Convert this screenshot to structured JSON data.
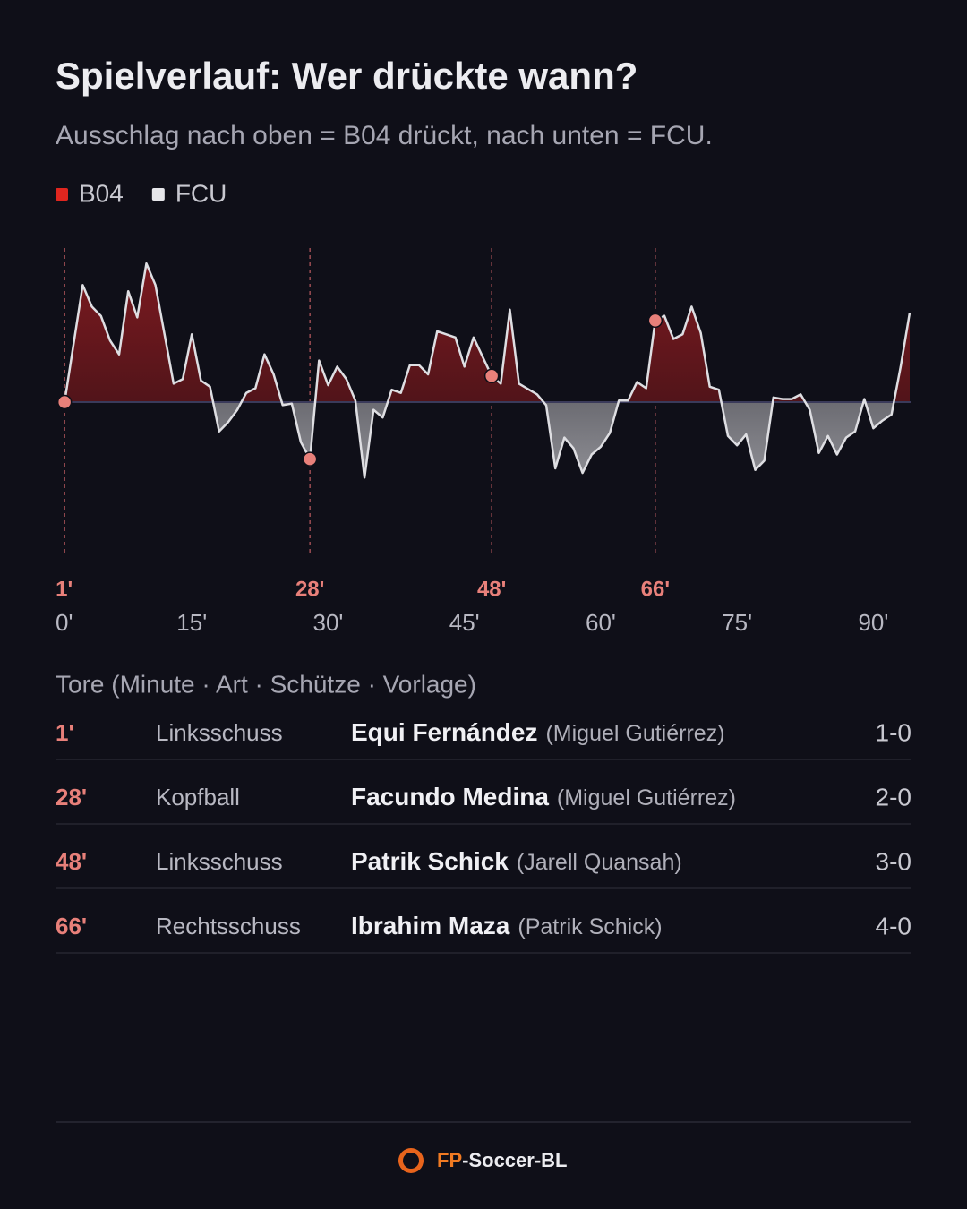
{
  "chart_data": {
    "type": "line",
    "title": "Spielverlauf: Wer drückte wann?",
    "subtitle": "Ausschlag nach oben = B04 drückt, nach unten = FCU.",
    "legend": [
      {
        "name": "B04",
        "color": "#e0261f"
      },
      {
        "name": "FCU",
        "color": "#e6e6ea"
      }
    ],
    "x": [
      1,
      3,
      4,
      5,
      6,
      7,
      8,
      9,
      10,
      11,
      13,
      14,
      15,
      16,
      17,
      18,
      19,
      20,
      21,
      22,
      23,
      24,
      25,
      26,
      27,
      28,
      29,
      30,
      31,
      32,
      33,
      34,
      35,
      36,
      37,
      38,
      39,
      40,
      41,
      42,
      43,
      44,
      45,
      46,
      48,
      49,
      50,
      51,
      53,
      54,
      55,
      56,
      57,
      58,
      59,
      60,
      61,
      62,
      63,
      64,
      65,
      66,
      67,
      68,
      69,
      70,
      71,
      72,
      73,
      74,
      75,
      76,
      77,
      78,
      79,
      80,
      81,
      82,
      83,
      84,
      85,
      86,
      87,
      88,
      89,
      90,
      91,
      92,
      93,
      94
    ],
    "values": [
      0,
      0.76,
      0.62,
      0.56,
      0.4,
      0.31,
      0.72,
      0.55,
      0.9,
      0.76,
      0.12,
      0.15,
      0.44,
      0.14,
      0.1,
      -0.19,
      -0.13,
      -0.05,
      0.06,
      0.09,
      0.31,
      0.18,
      -0.02,
      -0.01,
      -0.26,
      -0.37,
      0.27,
      0.11,
      0.23,
      0.15,
      0.01,
      -0.49,
      -0.05,
      -0.1,
      0.08,
      0.06,
      0.24,
      0.24,
      0.18,
      0.46,
      0.44,
      0.42,
      0.23,
      0.42,
      0.17,
      0.12,
      0.6,
      0.12,
      0.05,
      -0.02,
      -0.43,
      -0.23,
      -0.3,
      -0.46,
      -0.34,
      -0.29,
      -0.2,
      0.01,
      0.01,
      0.13,
      0.09,
      0.53,
      0.56,
      0.41,
      0.44,
      0.62,
      0.45,
      0.1,
      0.08,
      -0.22,
      -0.28,
      -0.21,
      -0.44,
      -0.38,
      0.03,
      0.02,
      0.02,
      0.05,
      -0.05,
      -0.33,
      -0.22,
      -0.34,
      -0.23,
      -0.19,
      0.02,
      -0.17,
      -0.12,
      -0.08,
      0.23,
      0.58
    ],
    "xlim": [
      0,
      94
    ],
    "ylim": [
      -1,
      1
    ],
    "xticks": [
      {
        "value": 0,
        "label": "0'"
      },
      {
        "value": 15,
        "label": "15'"
      },
      {
        "value": 30,
        "label": "30'"
      },
      {
        "value": 45,
        "label": "45'"
      },
      {
        "value": 60,
        "label": "60'"
      },
      {
        "value": 75,
        "label": "75'"
      },
      {
        "value": 90,
        "label": "90'"
      }
    ],
    "goal_minutes": [
      1,
      28,
      48,
      66
    ],
    "goal_labels": [
      "1'",
      "28'",
      "48'",
      "66'"
    ],
    "goal_color": "#e8807a"
  },
  "goals": {
    "heading": "Tore (Minute · Art · Schütze · Vorlage)",
    "rows": [
      {
        "minute": "1'",
        "type": "Linksschuss",
        "scorer": "Equi Fernández",
        "assist": "(Miguel Gutiérrez)",
        "score": "1-0"
      },
      {
        "minute": "28'",
        "type": "Kopfball",
        "scorer": "Facundo Medina",
        "assist": "(Miguel Gutiérrez)",
        "score": "2-0"
      },
      {
        "minute": "48'",
        "type": "Linksschuss",
        "scorer": "Patrik Schick",
        "assist": "(Jarell Quansah)",
        "score": "3-0"
      },
      {
        "minute": "66'",
        "type": "Rechtsschuss",
        "scorer": "Ibrahim Maza",
        "assist": "(Patrik Schick)",
        "score": "4-0"
      }
    ]
  },
  "footer": {
    "brand_prefix": "FP",
    "brand_suffix": "-Soccer-BL"
  }
}
